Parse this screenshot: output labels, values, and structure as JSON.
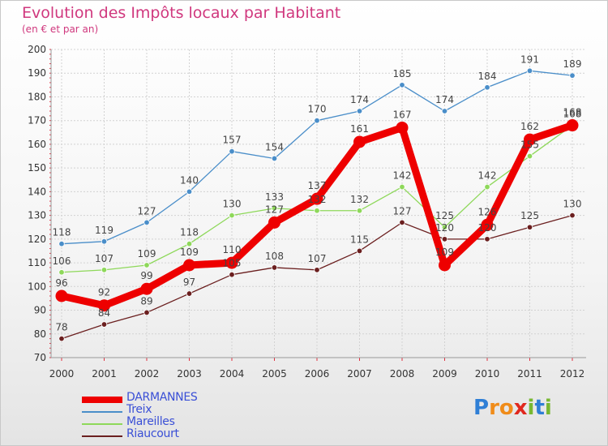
{
  "chart_data": {
    "type": "line",
    "title": "Evolution des Impôts locaux par Habitant",
    "subtitle": "(en € et par an)",
    "x": [
      "2000",
      "2001",
      "2002",
      "2003",
      "2004",
      "2005",
      "2006",
      "2007",
      "2008",
      "2009",
      "2010",
      "2011",
      "2012"
    ],
    "ylim": [
      70,
      200
    ],
    "yticks": [
      70,
      80,
      90,
      100,
      110,
      120,
      130,
      140,
      150,
      160,
      170,
      180,
      190,
      200
    ],
    "grid": true,
    "legend_position": "bottom-left",
    "series": [
      {
        "name": "DARMANNES",
        "color": "#ee0000",
        "values": [
          96,
          92,
          99,
          109,
          110,
          127,
          137,
          161,
          167,
          109,
          126,
          162,
          168
        ]
      },
      {
        "name": "Treix",
        "color": "#4a8ec9",
        "values": [
          118,
          119,
          127,
          140,
          157,
          154,
          170,
          174,
          185,
          174,
          184,
          191,
          189
        ]
      },
      {
        "name": "Mareilles",
        "color": "#8ed85a",
        "values": [
          106,
          107,
          109,
          118,
          130,
          133,
          132,
          132,
          142,
          125,
          142,
          155,
          168
        ]
      },
      {
        "name": "Riaucourt",
        "color": "#6b1f1f",
        "values": [
          78,
          84,
          89,
          97,
          105,
          108,
          107,
          115,
          127,
          120,
          120,
          125,
          130
        ]
      }
    ]
  },
  "brand": {
    "letters": [
      "P",
      "r",
      "o",
      "x",
      "i",
      "t",
      "i"
    ],
    "colors": [
      "#2f7fd6",
      "#f08c1a",
      "#f08c1a",
      "#e0281e",
      "#78b832",
      "#2f7fd6",
      "#78b832"
    ]
  }
}
